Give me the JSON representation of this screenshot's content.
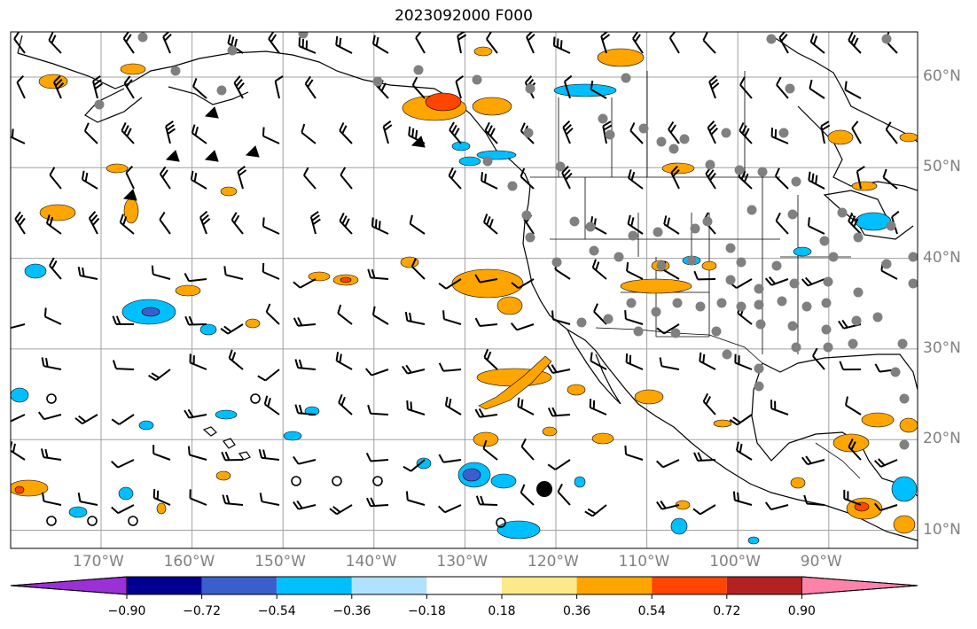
{
  "title": "2023092000 F000",
  "lon_labels": [
    "170°W",
    "160°W",
    "150°W",
    "140°W",
    "130°W",
    "120°W",
    "110°W",
    "100°W",
    "90°W"
  ],
  "lat_labels": [
    "60°N",
    "50°N",
    "40°N",
    "30°N",
    "20°N",
    "10°N"
  ],
  "colorbar": {
    "tick_labels": [
      "−0.90",
      "−0.72",
      "−0.54",
      "−0.36",
      "−0.18",
      "0.18",
      "0.36",
      "0.54",
      "0.72",
      "0.90"
    ],
    "colors": [
      "#9b30d8",
      "#000090",
      "#3a5fcd",
      "#00bfff",
      "#b0e2ff",
      "#ffffff",
      "#fce98a",
      "#ffa500",
      "#ff4500",
      "#b22222",
      "#ff82ab"
    ]
  },
  "colors": {
    "positive_small": "#ffa500",
    "positive_large": "#ff4500",
    "negative_small": "#00bfff",
    "negative_large": "#3a5fcd",
    "gridline": "#a0a0a0",
    "station_marker": "#808080"
  }
}
